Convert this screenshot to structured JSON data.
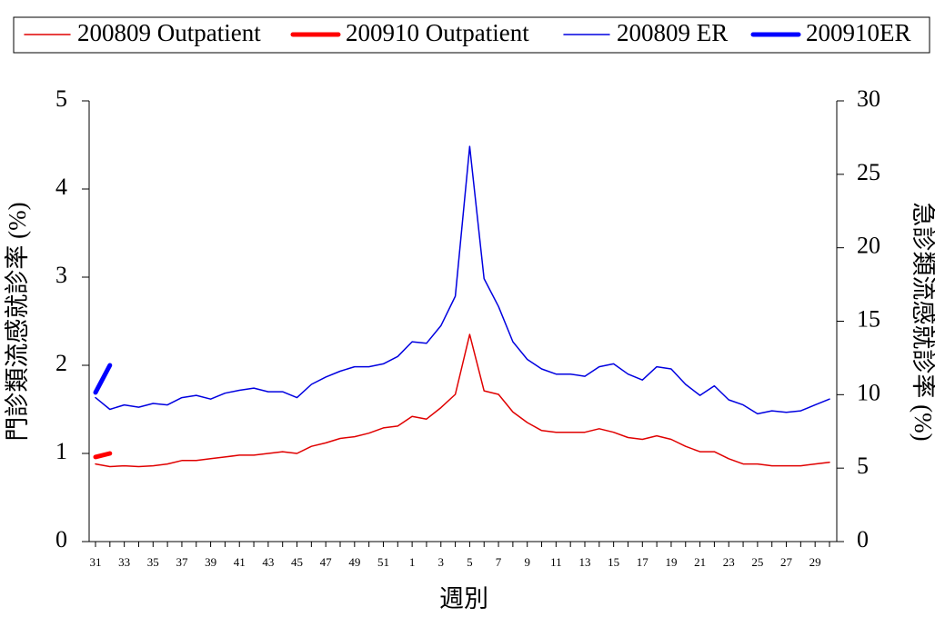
{
  "chart_data": {
    "type": "line",
    "xlabel": "週別",
    "ylabel": "門診類流感就診率 (%)",
    "y2label": "急診類流感就診率 (%)",
    "categories": [
      "31",
      null,
      "33",
      null,
      "35",
      null,
      "37",
      null,
      "39",
      null,
      "41",
      null,
      "43",
      null,
      "45",
      null,
      "47",
      null,
      "49",
      null,
      "51",
      null,
      "1",
      null,
      "3",
      null,
      "5",
      null,
      "7",
      null,
      "9",
      null,
      "11",
      null,
      "13",
      null,
      "15",
      null,
      "17",
      null,
      "19",
      null,
      "21",
      null,
      "23",
      null,
      "25",
      null,
      "27",
      null,
      "29",
      null
    ],
    "ylim": [
      0,
      5
    ],
    "yticks": [
      0,
      1,
      2,
      3,
      4,
      5
    ],
    "y2lim": [
      0,
      30
    ],
    "y2ticks": [
      0,
      5,
      10,
      15,
      20,
      25,
      30
    ],
    "series": [
      {
        "name": "200809 Outpatient",
        "color": "#e00000",
        "linewidth": 1.5,
        "values": [
          0.88,
          0.85,
          0.86,
          0.85,
          0.86,
          0.88,
          0.92,
          0.92,
          0.94,
          0.96,
          0.98,
          0.98,
          1.0,
          1.02,
          1.0,
          1.08,
          1.12,
          1.17,
          1.19,
          1.23,
          1.29,
          1.31,
          1.42,
          1.39,
          1.52,
          1.67,
          2.35,
          1.71,
          1.67,
          1.47,
          1.35,
          1.26,
          1.24,
          1.24,
          1.24,
          1.28,
          1.24,
          1.18,
          1.16,
          1.2,
          1.16,
          1.08,
          1.02,
          1.02,
          0.94,
          0.88,
          0.88,
          0.86,
          0.86,
          0.86,
          0.88,
          0.9
        ]
      },
      {
        "name": "200910 Outpatient",
        "color": "#ff0000",
        "linewidth": 5,
        "values": [
          0.96,
          1.0,
          null,
          null,
          null,
          null,
          null,
          null,
          null,
          null,
          null,
          null,
          null,
          null,
          null,
          null,
          null,
          null,
          null,
          null,
          null,
          null,
          null,
          null,
          null,
          null,
          null,
          null,
          null,
          null,
          null,
          null,
          null,
          null,
          null,
          null,
          null,
          null,
          null,
          null,
          null,
          null,
          null,
          null,
          null,
          null,
          null,
          null,
          null,
          null,
          null,
          null
        ]
      },
      {
        "name": "200809 ER",
        "color": "#0000e0",
        "linewidth": 1.5,
        "axis": "y2",
        "values": [
          9.8,
          9.0,
          9.3,
          9.15,
          9.4,
          9.3,
          9.8,
          9.95,
          9.7,
          10.1,
          10.3,
          10.45,
          10.2,
          10.2,
          9.8,
          10.7,
          11.2,
          11.6,
          11.9,
          11.9,
          12.1,
          12.6,
          13.6,
          13.5,
          14.7,
          16.7,
          26.9,
          17.9,
          16.0,
          13.6,
          12.4,
          11.75,
          11.4,
          11.4,
          11.25,
          11.9,
          12.1,
          11.4,
          11.0,
          11.9,
          11.75,
          10.7,
          9.95,
          10.6,
          9.65,
          9.3,
          8.7,
          8.9,
          8.8,
          8.9,
          9.3,
          9.7
        ]
      },
      {
        "name": "200910ER",
        "color": "#0000ff",
        "linewidth": 5,
        "axis": "y2",
        "values": [
          10.15,
          12.0,
          null,
          null,
          null,
          null,
          null,
          null,
          null,
          null,
          null,
          null,
          null,
          null,
          null,
          null,
          null,
          null,
          null,
          null,
          null,
          null,
          null,
          null,
          null,
          null,
          null,
          null,
          null,
          null,
          null,
          null,
          null,
          null,
          null,
          null,
          null,
          null,
          null,
          null,
          null,
          null,
          null,
          null,
          null,
          null,
          null,
          null,
          null,
          null,
          null,
          null
        ]
      }
    ]
  }
}
